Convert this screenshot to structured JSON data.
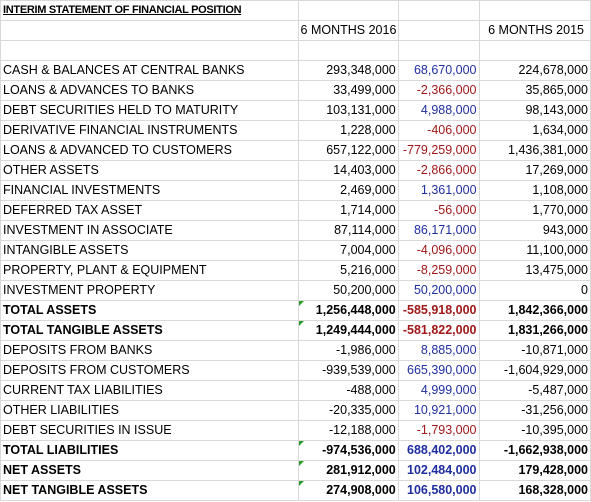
{
  "title": "INTERIM STATEMENT OF FINANCIAL POSITION",
  "columns": [
    "6 MONTHS 2016",
    "",
    "6 MONTHS 2015"
  ],
  "rows": [
    {
      "label": "CASH & BALANCES AT CENTRAL BANKS",
      "v2016": "293,348,000",
      "change": "68,670,000",
      "sign": "pos",
      "v2015": "224,678,000",
      "bold": false
    },
    {
      "label": "LOANS & ADVANCES TO BANKS",
      "v2016": "33,499,000",
      "change": "-2,366,000",
      "sign": "neg",
      "v2015": "35,865,000",
      "bold": false
    },
    {
      "label": "DEBT SECURITIES HELD TO MATURITY",
      "v2016": "103,131,000",
      "change": "4,988,000",
      "sign": "pos",
      "v2015": "98,143,000",
      "bold": false
    },
    {
      "label": "DERIVATIVE FINANCIAL INSTRUMENTS",
      "v2016": "1,228,000",
      "change": "-406,000",
      "sign": "neg",
      "v2015": "1,634,000",
      "bold": false
    },
    {
      "label": "LOANS & ADVANCED TO CUSTOMERS",
      "v2016": "657,122,000",
      "change": "-779,259,000",
      "sign": "neg",
      "v2015": "1,436,381,000",
      "bold": false
    },
    {
      "label": "OTHER ASSETS",
      "v2016": "14,403,000",
      "change": "-2,866,000",
      "sign": "neg",
      "v2015": "17,269,000",
      "bold": false
    },
    {
      "label": "FINANCIAL INVESTMENTS",
      "v2016": "2,469,000",
      "change": "1,361,000",
      "sign": "pos",
      "v2015": "1,108,000",
      "bold": false
    },
    {
      "label": "DEFERRED TAX ASSET",
      "v2016": "1,714,000",
      "change": "-56,000",
      "sign": "neg",
      "v2015": "1,770,000",
      "bold": false
    },
    {
      "label": "INVESTMENT IN ASSOCIATE",
      "v2016": "87,114,000",
      "change": "86,171,000",
      "sign": "pos",
      "v2015": "943,000",
      "bold": false
    },
    {
      "label": "INTANGIBLE ASSETS",
      "v2016": "7,004,000",
      "change": "-4,096,000",
      "sign": "neg",
      "v2015": "11,100,000",
      "bold": false
    },
    {
      "label": "PROPERTY, PLANT & EQUIPMENT",
      "v2016": "5,216,000",
      "change": "-8,259,000",
      "sign": "neg",
      "v2015": "13,475,000",
      "bold": false
    },
    {
      "label": "INVESTMENT PROPERTY",
      "v2016": "50,200,000",
      "change": "50,200,000",
      "sign": "pos",
      "v2015": "0",
      "bold": false
    },
    {
      "label": "TOTAL ASSETS",
      "v2016": "1,256,448,000",
      "change": "-585,918,000",
      "sign": "neg",
      "v2015": "1,842,366,000",
      "bold": true,
      "mark": true
    },
    {
      "label": "TOTAL TANGIBLE ASSETS",
      "v2016": "1,249,444,000",
      "change": "-581,822,000",
      "sign": "neg",
      "v2015": "1,831,266,000",
      "bold": true,
      "mark": true
    },
    {
      "label": "DEPOSITS FROM BANKS",
      "v2016": "-1,986,000",
      "change": "8,885,000",
      "sign": "pos",
      "v2015": "-10,871,000",
      "bold": false
    },
    {
      "label": "DEPOSITS FROM CUSTOMERS",
      "v2016": "-939,539,000",
      "change": "665,390,000",
      "sign": "pos",
      "v2015": "-1,604,929,000",
      "bold": false
    },
    {
      "label": "CURRENT TAX LIABILITIES",
      "v2016": "-488,000",
      "change": "4,999,000",
      "sign": "pos",
      "v2015": "-5,487,000",
      "bold": false
    },
    {
      "label": "OTHER LIABILITIES",
      "v2016": "-20,335,000",
      "change": "10,921,000",
      "sign": "pos",
      "v2015": "-31,256,000",
      "bold": false
    },
    {
      "label": "DEBT SECURITIES IN ISSUE",
      "v2016": "-12,188,000",
      "change": "-1,793,000",
      "sign": "neg",
      "v2015": "-10,395,000",
      "bold": false
    },
    {
      "label": "TOTAL LIABILITIES",
      "v2016": "-974,536,000",
      "change": "688,402,000",
      "sign": "pos",
      "v2015": "-1,662,938,000",
      "bold": true,
      "mark": true
    },
    {
      "label": "NET ASSETS",
      "v2016": "281,912,000",
      "change": "102,484,000",
      "sign": "pos",
      "v2015": "179,428,000",
      "bold": true,
      "mark": true
    },
    {
      "label": "NET TANGIBLE ASSETS",
      "v2016": "274,908,000",
      "change": "106,580,000",
      "sign": "pos",
      "v2015": "168,328,000",
      "bold": true,
      "mark": true
    }
  ]
}
